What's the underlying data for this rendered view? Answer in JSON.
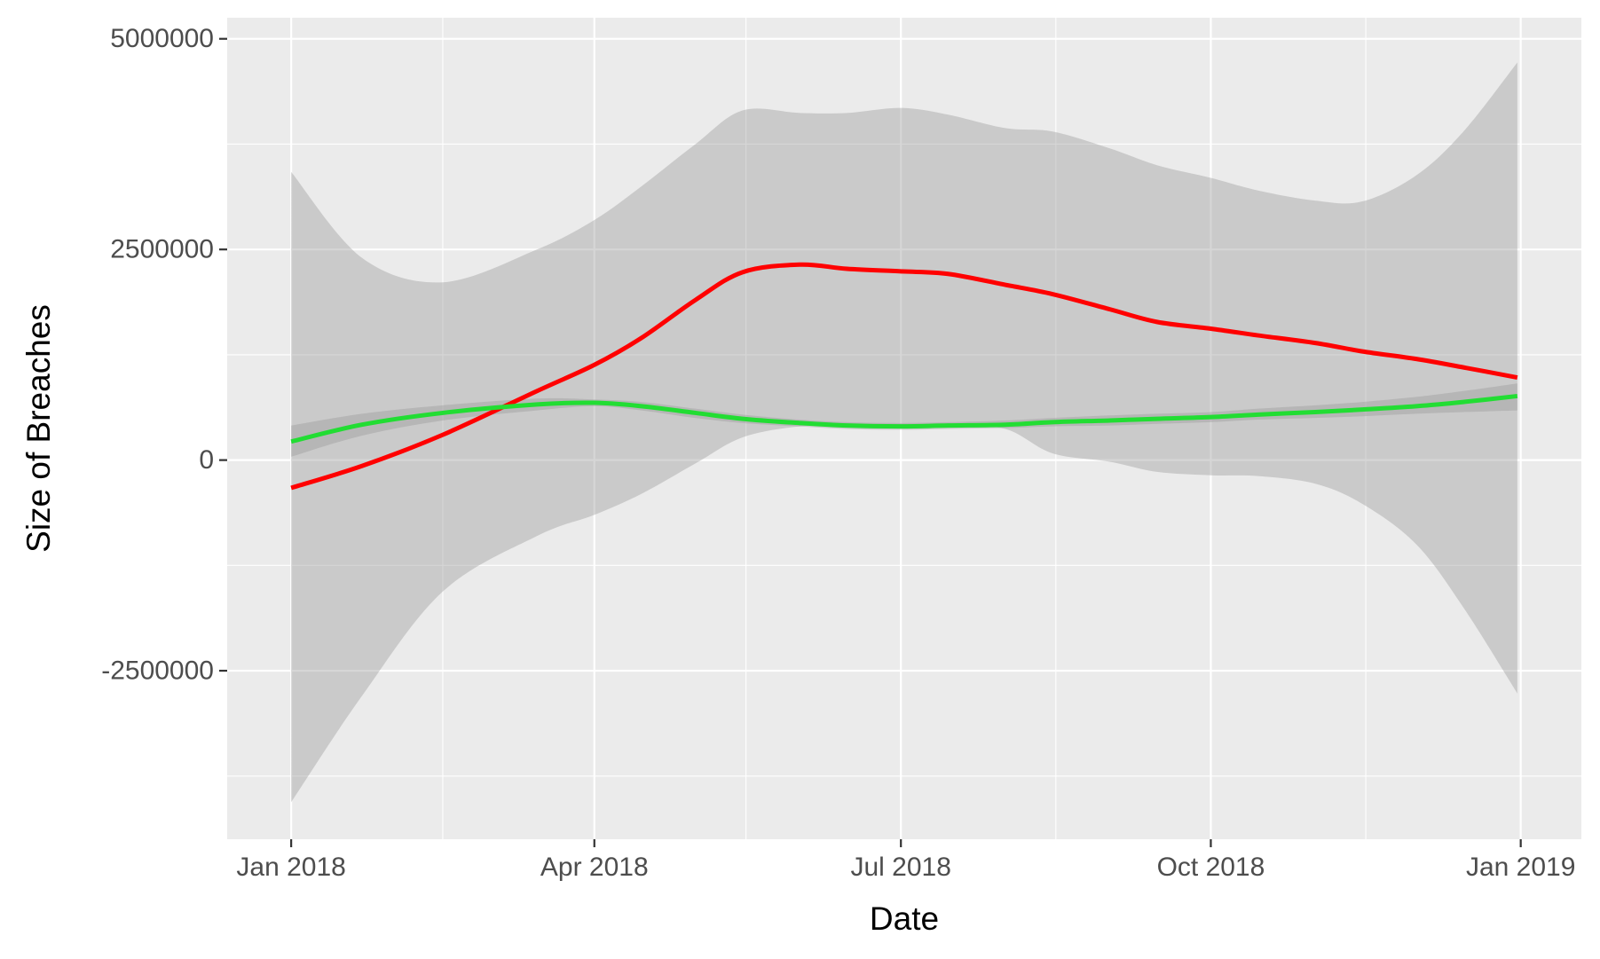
{
  "chart_data": {
    "type": "line",
    "title": "",
    "xlabel": "Date",
    "ylabel": "Size of Breaches",
    "x_scale": "date",
    "xlim": [
      "2017-12-13",
      "2019-01-19"
    ],
    "ylim": [
      -4500000,
      5250000
    ],
    "x_ticks": [
      "2018-01-01",
      "2018-04-01",
      "2018-07-01",
      "2018-10-01",
      "2019-01-01"
    ],
    "x_tick_labels": [
      "Jan 2018",
      "Apr 2018",
      "Jul 2018",
      "Oct 2018",
      "Jan 2019"
    ],
    "x_minor_ticks": [
      "2018-02-15",
      "2018-05-16",
      "2018-08-16",
      "2018-11-16"
    ],
    "y_ticks": [
      5000000,
      2500000,
      0,
      -2500000
    ],
    "y_tick_labels": [
      "5000000",
      "2500000",
      "0",
      "-2500000"
    ],
    "y_minor_ticks": [
      3750000,
      1250000,
      -1250000,
      -3750000
    ],
    "grid": true,
    "legend": "none",
    "colors": {
      "panel_background": "#ebebeb",
      "gridline": "#ffffff",
      "confidence_band": "#999999",
      "tick_label": "#4d4d4d",
      "axis_title": "#000000"
    },
    "series": [
      {
        "color": "#ff0000",
        "x": [
          "2018-01-01",
          "2018-01-22",
          "2018-02-15",
          "2018-03-15",
          "2018-04-01",
          "2018-04-15",
          "2018-05-01",
          "2018-05-15",
          "2018-06-01",
          "2018-06-15",
          "2018-07-01",
          "2018-07-15",
          "2018-08-01",
          "2018-08-15",
          "2018-09-01",
          "2018-09-15",
          "2018-10-01",
          "2018-10-15",
          "2018-11-01",
          "2018-11-15",
          "2018-12-01",
          "2018-12-15",
          "2018-12-31"
        ],
        "y": [
          -330000,
          -70000,
          300000,
          820000,
          1130000,
          1450000,
          1900000,
          2230000,
          2320000,
          2270000,
          2240000,
          2210000,
          2080000,
          1970000,
          1790000,
          1640000,
          1560000,
          1480000,
          1390000,
          1290000,
          1200000,
          1100000,
          980000
        ],
        "band_upper": [
          3420000,
          2400000,
          2110000,
          2500000,
          2850000,
          3250000,
          3750000,
          4150000,
          4120000,
          4120000,
          4180000,
          4100000,
          3940000,
          3900000,
          3700000,
          3500000,
          3350000,
          3200000,
          3080000,
          3070000,
          3380000,
          3900000,
          4720000
        ],
        "band_lower": [
          -4060000,
          -2800000,
          -1560000,
          -900000,
          -650000,
          -400000,
          -40000,
          270000,
          400000,
          400000,
          390000,
          410000,
          370000,
          80000,
          -20000,
          -140000,
          -180000,
          -190000,
          -280000,
          -520000,
          -1000000,
          -1750000,
          -2770000
        ]
      },
      {
        "color": "#22dd33",
        "x": [
          "2018-01-01",
          "2018-01-22",
          "2018-02-15",
          "2018-03-15",
          "2018-04-01",
          "2018-04-15",
          "2018-05-01",
          "2018-05-15",
          "2018-06-01",
          "2018-06-15",
          "2018-07-01",
          "2018-07-15",
          "2018-08-01",
          "2018-08-15",
          "2018-09-01",
          "2018-09-15",
          "2018-10-01",
          "2018-10-15",
          "2018-11-01",
          "2018-11-15",
          "2018-12-01",
          "2018-12-15",
          "2018-12-31"
        ],
        "y": [
          220000,
          420000,
          560000,
          660000,
          680000,
          640000,
          560000,
          490000,
          440000,
          410000,
          400000,
          410000,
          420000,
          450000,
          470000,
          490000,
          510000,
          540000,
          570000,
          600000,
          640000,
          690000,
          760000
        ],
        "band_upper": [
          410000,
          550000,
          650000,
          730000,
          720000,
          690000,
          610000,
          540000,
          480000,
          450000,
          440000,
          450000,
          470000,
          500000,
          530000,
          550000,
          570000,
          610000,
          650000,
          690000,
          750000,
          820000,
          910000
        ],
        "band_lower": [
          40000,
          290000,
          470000,
          590000,
          640000,
          590000,
          500000,
          440000,
          400000,
          370000,
          360000,
          370000,
          380000,
          400000,
          410000,
          430000,
          450000,
          480000,
          500000,
          520000,
          550000,
          570000,
          590000
        ]
      }
    ]
  }
}
